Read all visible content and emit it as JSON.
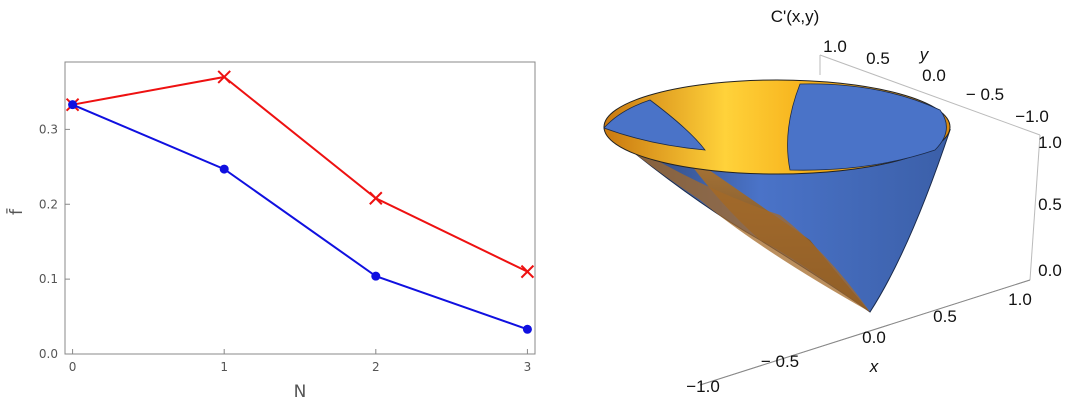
{
  "chart_data": [
    {
      "type": "line",
      "xlabel": "N",
      "ylabel": "f̄",
      "x": [
        0,
        1,
        2,
        3
      ],
      "xticks": [
        "0",
        "1",
        "2",
        "3"
      ],
      "yticks": [
        "0.0",
        "0.1",
        "0.2",
        "0.3"
      ],
      "ylim": [
        0,
        0.39
      ],
      "xlim": [
        -0.05,
        3.05
      ],
      "grid": false,
      "series": [
        {
          "values": [
            0.333,
            0.37,
            0.208,
            0.11
          ],
          "color": "#ee1111",
          "marker": "x"
        },
        {
          "values": [
            0.333,
            0.247,
            0.104,
            0.033
          ],
          "color": "#1010e0",
          "marker": "dot"
        }
      ]
    },
    {
      "type": "surface3d",
      "title": "C'(x,y)",
      "xlabel": "x",
      "ylabel": "y",
      "xticks": [
        "−1.0",
        "− 0.5",
        "0.0",
        "0.5",
        "1.0"
      ],
      "yticks": [
        "1.0",
        "0.5",
        "0.0",
        "− 0.5",
        "−1.0"
      ],
      "zticks": [
        "0.0",
        "0.5",
        "1.0"
      ],
      "xlim": [
        -1,
        1
      ],
      "ylim": [
        -1,
        1
      ],
      "zlim": [
        0,
        1
      ],
      "colors": {
        "outer_surface": "#4a73c8",
        "inner_surface": "#f2a21a"
      }
    }
  ]
}
